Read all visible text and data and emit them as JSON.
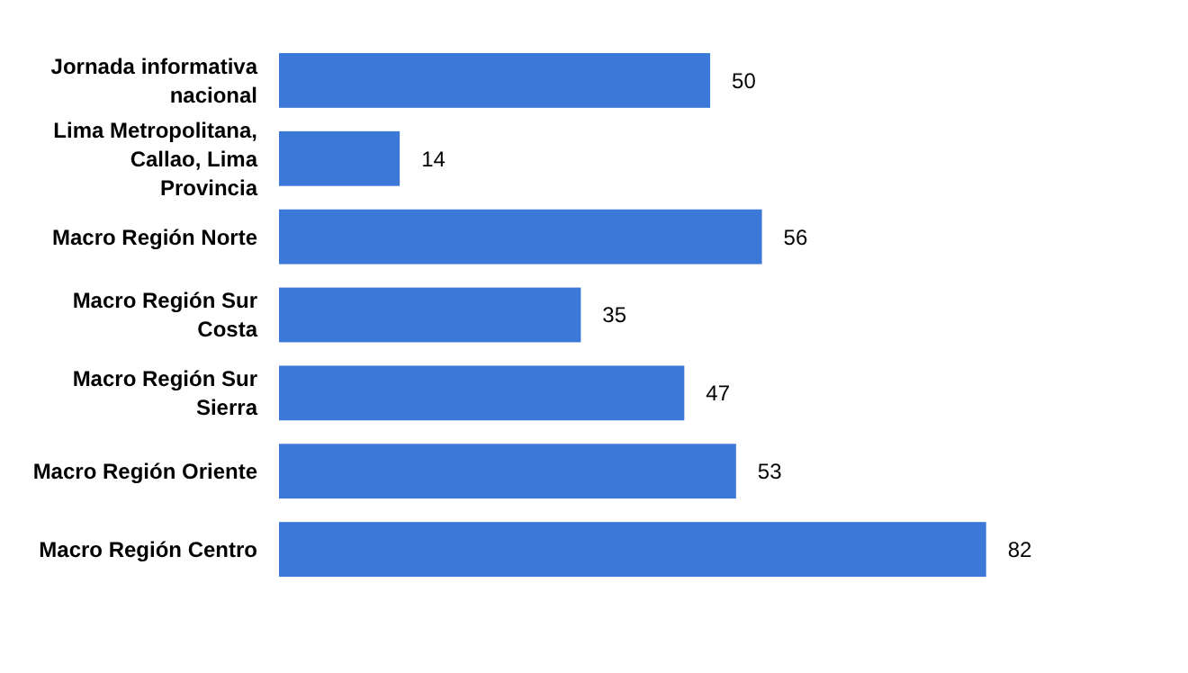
{
  "chart_data": {
    "type": "bar",
    "orientation": "horizontal",
    "relative": false,
    "categories": [
      "Jornada informativa nacional",
      "Lima Metropolitana, Callao, Lima Provincia",
      "Macro Región Norte",
      "Macro Región Sur Costa",
      "Macro Región Sur Sierra",
      "Macro Región Oriente",
      "Macro Región Centro"
    ],
    "values": [
      50,
      14,
      56,
      35,
      47,
      53,
      82
    ],
    "color": "#3c78d8",
    "data_labels": true
  }
}
